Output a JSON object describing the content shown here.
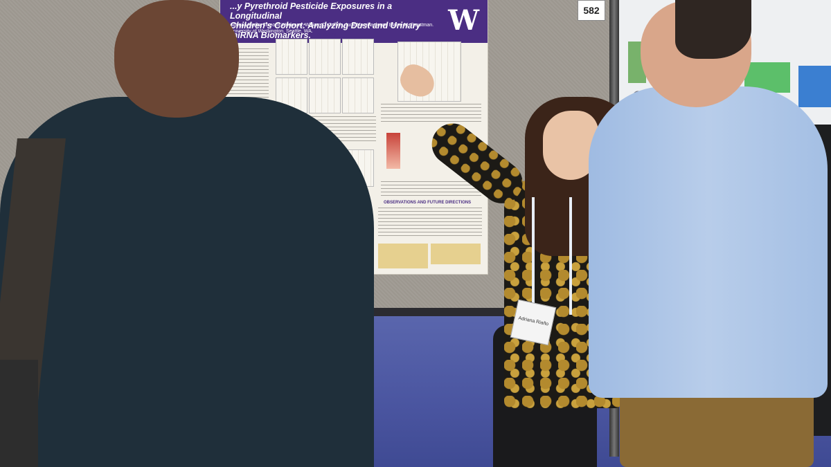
{
  "poster": {
    "title_line1": "...y Pyrethroid Pesticide Exposures in a Longitudinal",
    "title_line2": "Children's Cohort: Analyzing Dust and Urinary miRNA Biomarkers.",
    "authors": "Adriana Riaño, Tomomi Workman, William C. Griffith, Judit Marsillach and Elaine M. Faustman.",
    "affiliation": "University of Washington, Seattle, WA.",
    "logo": "W",
    "section_results": "RESULTS",
    "section_observations": "OBSERVATIONS AND FUTURE DIRECTIONS"
  },
  "booth": {
    "number": "582"
  },
  "badge": {
    "name": "Adriana Riaño"
  },
  "colors": {
    "poster_band": "#4b2e83",
    "carpet": "#4a55a0",
    "shirt_left": "#1f2f3a",
    "shirt_right": "#b8cdea"
  }
}
